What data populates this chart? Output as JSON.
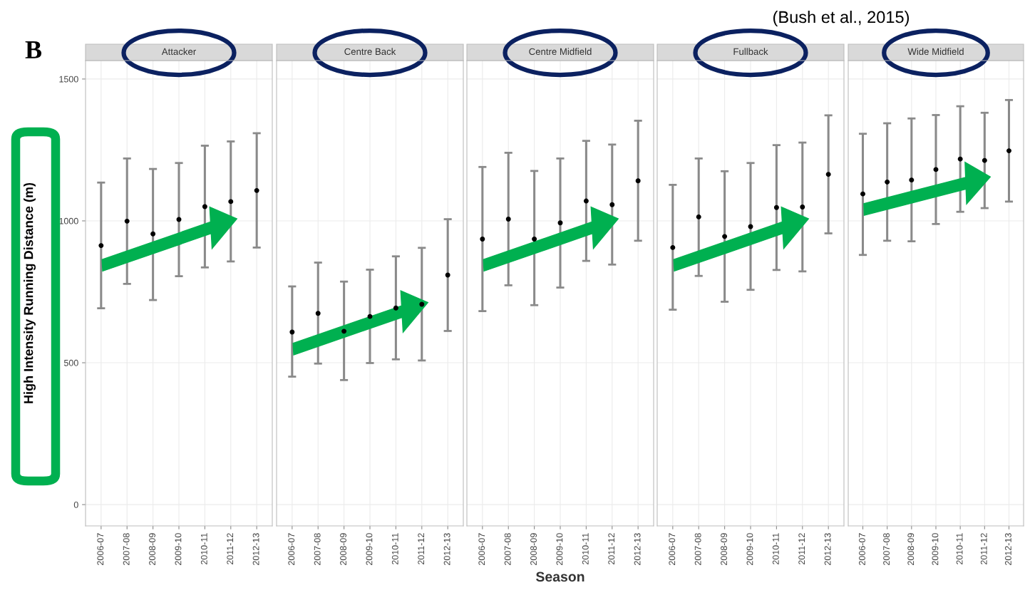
{
  "chart_data": [
    {
      "type": "scatter",
      "title": "Attacker",
      "ylabel": "High Intensity Running Distance (m)",
      "annotations": [
        "B",
        "(Bush et al., 2015)"
      ],
      "categories": [
        "2006-07",
        "2007-08",
        "2008-09",
        "2009-10",
        "2010-11",
        "2011-12",
        "2012-13"
      ],
      "values": [
        913,
        999,
        954,
        1005,
        1050,
        1068,
        1107
      ],
      "errors": [
        [
          692,
          1135
        ],
        [
          778,
          1220
        ],
        [
          721,
          1183
        ],
        [
          805,
          1204
        ],
        [
          836,
          1265
        ],
        [
          857,
          1280
        ],
        [
          906,
          1309
        ]
      ],
      "color": "#000000",
      "ylim": [
        -75,
        1565
      ],
      "yticks": [
        0,
        500,
        1000,
        1500
      ],
      "grid": true,
      "marker": "circle"
    },
    {
      "type": "scatter",
      "title": "Centre Back",
      "categories": [
        "2006-07",
        "2007-08",
        "2008-09",
        "2009-10",
        "2010-11",
        "2011-12",
        "2012-13"
      ],
      "values": [
        608,
        674,
        611,
        663,
        693,
        706,
        809
      ],
      "errors": [
        [
          451,
          769
        ],
        [
          497,
          853
        ],
        [
          439,
          786
        ],
        [
          499,
          828
        ],
        [
          512,
          875
        ],
        [
          508,
          905
        ],
        [
          612,
          1006
        ]
      ],
      "color": "#000000",
      "ylim": [
        -75,
        1565
      ],
      "yticks": [
        0,
        500,
        1000,
        1500
      ],
      "tick_labels": "x",
      "grid": true,
      "marker": "circle"
    },
    {
      "type": "scatter",
      "title": "Centre Midfield",
      "xlabel": "Season",
      "categories": [
        "2006-07",
        "2007-08",
        "2008-09",
        "2009-10",
        "2010-11",
        "2011-12",
        "2012-13"
      ],
      "values": [
        936,
        1006,
        936,
        993,
        1070,
        1057,
        1141
      ],
      "errors": [
        [
          682,
          1190
        ],
        [
          773,
          1240
        ],
        [
          703,
          1176
        ],
        [
          765,
          1220
        ],
        [
          859,
          1282
        ],
        [
          846,
          1269
        ],
        [
          930,
          1353
        ]
      ],
      "color": "#000000",
      "ylim": [
        -75,
        1565
      ],
      "yticks": [
        0,
        500,
        1000,
        1500
      ],
      "tick_labels": "x",
      "grid": true,
      "marker": "circle"
    },
    {
      "type": "scatter",
      "title": "Fullback",
      "categories": [
        "2006-07",
        "2007-08",
        "2008-09",
        "2009-10",
        "2010-11",
        "2011-12",
        "2012-13"
      ],
      "values": [
        906,
        1014,
        945,
        980,
        1047,
        1049,
        1164
      ],
      "errors": [
        [
          687,
          1127
        ],
        [
          806,
          1220
        ],
        [
          715,
          1175
        ],
        [
          757,
          1204
        ],
        [
          827,
          1267
        ],
        [
          822,
          1276
        ],
        [
          956,
          1372
        ]
      ],
      "color": "#000000",
      "ylim": [
        -75,
        1565
      ],
      "yticks": [
        0,
        500,
        1000,
        1500
      ],
      "tick_labels": "x",
      "grid": true,
      "marker": "circle"
    },
    {
      "type": "scatter",
      "title": "Wide Midfield",
      "categories": [
        "2006-07",
        "2007-08",
        "2008-09",
        "2009-10",
        "2010-11",
        "2011-12",
        "2012-13"
      ],
      "values": [
        1095,
        1137,
        1144,
        1181,
        1218,
        1213,
        1247
      ],
      "errors": [
        [
          880,
          1307
        ],
        [
          930,
          1344
        ],
        [
          928,
          1361
        ],
        [
          989,
          1373
        ],
        [
          1032,
          1404
        ],
        [
          1045,
          1381
        ],
        [
          1068,
          1426
        ]
      ],
      "color": "#000000",
      "ylim": [
        -75,
        1565
      ],
      "yticks": [
        0,
        500,
        1000,
        1500
      ],
      "tick_labels": "x",
      "grid": true,
      "marker": "circle"
    }
  ]
}
